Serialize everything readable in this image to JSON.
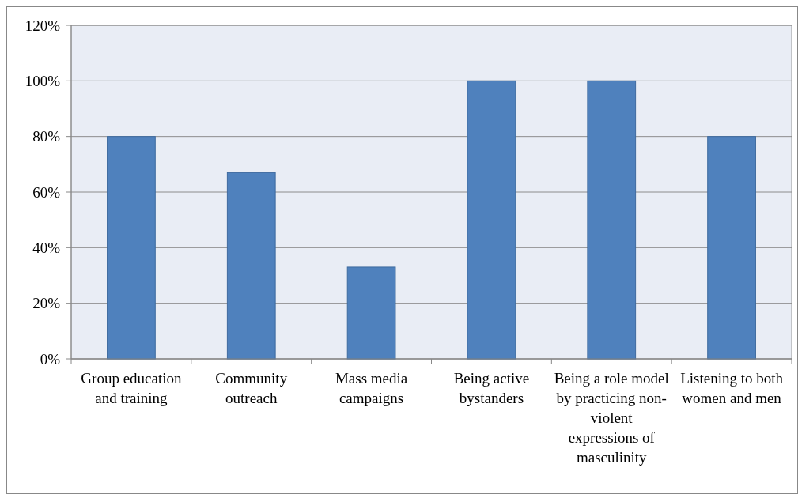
{
  "chart_data": {
    "type": "bar",
    "categories": [
      "Group education and training",
      "Community outreach",
      "Mass media campaigns",
      "Being active bystanders",
      "Being a role model by practicing non-violent expressions of masculinity",
      "Listening to both women and men"
    ],
    "values": [
      80,
      67,
      33,
      100,
      100,
      80
    ],
    "color": "#4f81bd",
    "ylim": [
      0,
      120
    ],
    "yticks": [
      {
        "value": 0,
        "label": "0%"
      },
      {
        "value": 20,
        "label": "20%"
      },
      {
        "value": 40,
        "label": "40%"
      },
      {
        "value": 60,
        "label": "60%"
      },
      {
        "value": 80,
        "label": "80%"
      },
      {
        "value": 100,
        "label": "100%"
      },
      {
        "value": 120,
        "label": "120%"
      }
    ],
    "grid": "y"
  }
}
